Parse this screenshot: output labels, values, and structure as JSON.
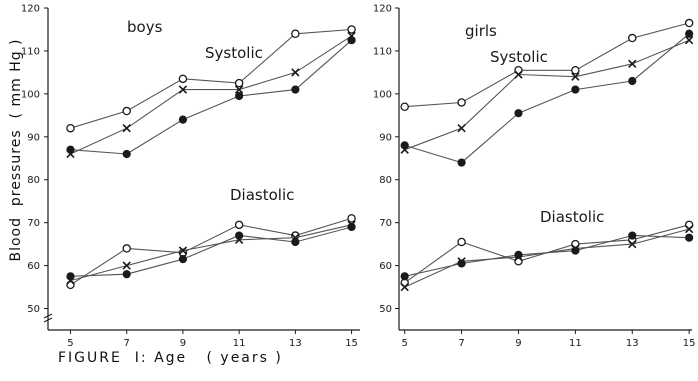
{
  "caption": {
    "label": "FIGURE  I:",
    "axis_text": "Age   ( years )"
  },
  "ylabel": "Blood  pressures  ( mm Hg )",
  "chart_data": [
    {
      "type": "line",
      "panel": "boys",
      "title": "boys",
      "annotations": [
        "Systolic",
        "Diastolic"
      ],
      "x": [
        5,
        7,
        9,
        11,
        13,
        15
      ],
      "xticks": [
        5,
        7,
        9,
        11,
        13,
        15
      ],
      "xlim": [
        4.2,
        15.3
      ],
      "ylim": [
        45,
        120
      ],
      "yticks": [
        50,
        60,
        70,
        80,
        90,
        100,
        110,
        120
      ],
      "ytick_labels": [
        "50",
        "60",
        "70",
        "80",
        "90",
        "100",
        "110",
        "120"
      ],
      "grid": false,
      "series": [
        {
          "group": "Systolic",
          "marker": "open-circle",
          "values": [
            92,
            96,
            103.5,
            102.5,
            114,
            115
          ]
        },
        {
          "group": "Systolic",
          "marker": "cross",
          "values": [
            86,
            92,
            101,
            101,
            105,
            113.5
          ]
        },
        {
          "group": "Systolic",
          "marker": "filled-circle",
          "values": [
            87,
            86,
            94,
            99.5,
            101,
            112.5
          ]
        },
        {
          "group": "Diastolic",
          "marker": "open-circle",
          "values": [
            55.5,
            64,
            63,
            69.5,
            67,
            71
          ]
        },
        {
          "group": "Diastolic",
          "marker": "cross",
          "values": [
            56.5,
            60,
            63.5,
            66,
            66.5,
            69.5
          ]
        },
        {
          "group": "Diastolic",
          "marker": "filled-circle",
          "values": [
            57.5,
            58,
            61.5,
            67,
            65.5,
            69
          ]
        }
      ]
    },
    {
      "type": "line",
      "panel": "girls",
      "title": "girls",
      "annotations": [
        "Systolic",
        "Diastolic"
      ],
      "x": [
        5,
        7,
        9,
        11,
        13,
        15
      ],
      "xticks": [
        5,
        7,
        9,
        11,
        13,
        15
      ],
      "xlim": [
        4.8,
        15.1
      ],
      "ylim": [
        45,
        120
      ],
      "yticks": [
        50,
        60,
        70,
        80,
        90,
        100,
        110,
        120
      ],
      "ytick_labels": [
        "50",
        "60",
        "70",
        "80",
        "90",
        "100",
        "110",
        "120"
      ],
      "grid": false,
      "series": [
        {
          "group": "Systolic",
          "marker": "open-circle",
          "values": [
            97,
            98,
            105.5,
            105.5,
            113,
            116.5
          ]
        },
        {
          "group": "Systolic",
          "marker": "cross",
          "values": [
            87,
            92,
            104.5,
            104,
            107,
            112.5
          ]
        },
        {
          "group": "Systolic",
          "marker": "filled-circle",
          "values": [
            88,
            84,
            95.5,
            101,
            103,
            114
          ]
        },
        {
          "group": "Diastolic",
          "marker": "open-circle",
          "values": [
            56,
            65.5,
            61,
            65,
            66,
            69.5
          ]
        },
        {
          "group": "Diastolic",
          "marker": "cross",
          "values": [
            55,
            61,
            62,
            64,
            65,
            68.5
          ]
        },
        {
          "group": "Diastolic",
          "marker": "filled-circle",
          "values": [
            57.5,
            60.5,
            62.5,
            63.5,
            67,
            66.5
          ]
        }
      ]
    }
  ]
}
